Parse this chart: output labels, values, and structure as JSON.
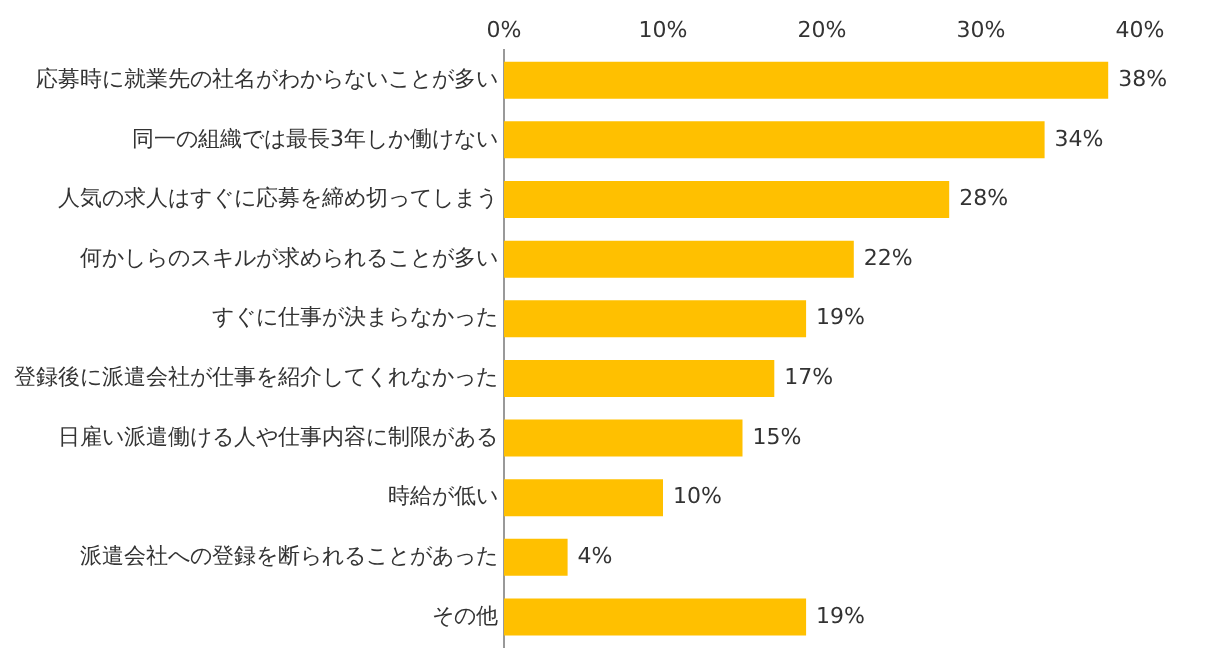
{
  "chart_data": {
    "type": "bar",
    "orientation": "horizontal",
    "categories": [
      "応募時に就業先の社名がわからないことが多い",
      "同一の組織では最長3年しか働けない",
      "人気の求人はすぐに応募を締め切ってしまう",
      "何かしらのスキルが求められることが多い",
      "すぐに仕事が決まらなかった",
      "登録後に派遣会社が仕事を紹介してくれなかった",
      "日雇い派遣働ける人や仕事内容に制限がある",
      "時給が低い",
      "派遣会社への登録を断られることがあった",
      "その他"
    ],
    "values": [
      38,
      34,
      28,
      22,
      19,
      17,
      15,
      10,
      4,
      19
    ],
    "value_labels": [
      "38%",
      "34%",
      "28%",
      "22%",
      "19%",
      "17%",
      "15%",
      "10%",
      "4%",
      "19%"
    ],
    "color": "#ffc000",
    "xlim": [
      0,
      40
    ],
    "xticks": [
      {
        "value": 0,
        "label": "0%"
      },
      {
        "value": 10,
        "label": "10%"
      },
      {
        "value": 20,
        "label": "20%"
      },
      {
        "value": 30,
        "label": "30%"
      },
      {
        "value": 40,
        "label": "40%"
      }
    ],
    "legend": false
  }
}
